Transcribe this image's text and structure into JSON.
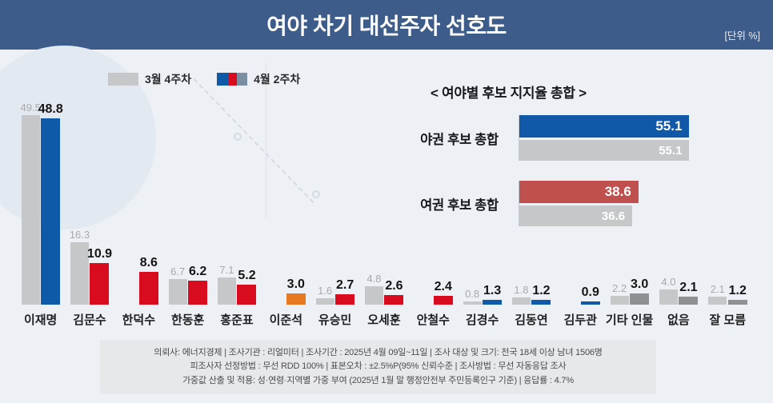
{
  "header": {
    "title": "여야 차기 대선주자 선호도",
    "unit_label": "[단위 %]"
  },
  "legend": {
    "items": [
      {
        "label": "3월 4주차",
        "swatch": "gray"
      },
      {
        "label": "4월 2주차",
        "swatch": "blue-red-slate"
      }
    ]
  },
  "colors": {
    "header_bg": "#3e5c8a",
    "prev_bar": "#c6c7c9",
    "blue": "#0f5aa8",
    "red": "#d80c1e",
    "orange": "#e8791e",
    "neutral": "#8f9092",
    "total_blue": "#1058a8",
    "total_red": "#c0504d"
  },
  "chart_data": [
    {
      "type": "bar",
      "title": "여야 차기 대선주자 선호도",
      "unit": "%",
      "legend_position": "top-left",
      "categories": [
        "이재명",
        "김문수",
        "한덕수",
        "한동훈",
        "홍준표",
        "이준석",
        "유승민",
        "오세훈",
        "안철수",
        "김경수",
        "김동연",
        "김두관",
        "기타 인물",
        "없음",
        "잘 모름"
      ],
      "series": [
        {
          "name": "3월 4주차",
          "values": [
            49.5,
            16.3,
            null,
            6.7,
            7.1,
            null,
            1.6,
            4.8,
            null,
            0.8,
            1.8,
            null,
            2.2,
            4.0,
            2.1
          ]
        },
        {
          "name": "4월 2주차",
          "values": [
            48.8,
            10.9,
            8.6,
            6.2,
            5.2,
            3.0,
            2.7,
            2.6,
            2.4,
            1.3,
            1.2,
            0.9,
            3.0,
            2.1,
            1.2
          ]
        }
      ],
      "current_bar_colors": [
        "blue",
        "red",
        "red",
        "red",
        "red",
        "orange",
        "red",
        "red",
        "red",
        "blue",
        "blue",
        "blue",
        "neutral",
        "neutral",
        "neutral"
      ],
      "ylim": [
        0,
        50
      ],
      "grid": false
    },
    {
      "type": "bar",
      "orientation": "horizontal",
      "title": "< 여야별 후보 지지율 총합 >",
      "rows": [
        {
          "label": "야권 후보 총합",
          "current": 55.1,
          "previous": 55.1,
          "color": "total_blue"
        },
        {
          "label": "여권 후보 총합",
          "current": 38.6,
          "previous": 36.6,
          "color": "total_red"
        }
      ],
      "xlim": [
        0,
        76
      ],
      "grid": false
    }
  ],
  "footer": {
    "lines": [
      "의뢰사: 에너지경제 | 조사기관 : 리얼미터  |  조사기간 : 2025년 4월 09일~11일 | 조사 대상 및 크기: 전국 18세 이상 남녀 1506명",
      "피조사자 선정방법 : 무선 RDD 100% | 표본오차 : ±2.5%P(95% 신뢰수준 | 조사방법 : 무선 자동응답 조사",
      "가중값 산출 및 적용: 성·연령·지역별 가중 부여 (2025년 1월 말 행정안전부 주민등록인구 기준) | 응답률 : 4.7%"
    ]
  }
}
